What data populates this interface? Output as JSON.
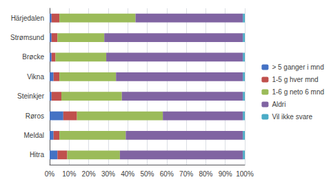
{
  "chart_data": {
    "type": "bar",
    "orientation": "horizontal",
    "stacked": true,
    "categories": [
      "Härjedalen",
      "Strømsund",
      "Brøcke",
      "Vikna",
      "Steinkjer",
      "Røros",
      "Meldal",
      "Hitra"
    ],
    "series": [
      {
        "name": "> 5 ganger i mnd",
        "color": "#4472C4",
        "values": [
          1,
          1,
          1,
          2,
          1,
          7,
          2,
          4
        ]
      },
      {
        "name": "1-5 g hver mnd",
        "color": "#C0504D",
        "values": [
          4,
          3,
          2,
          3,
          5,
          7,
          3,
          5
        ]
      },
      {
        "name": "1-6 g neto 6 mnd",
        "color": "#9BBB59",
        "values": [
          39,
          24,
          26,
          29,
          31,
          44,
          34,
          27
        ]
      },
      {
        "name": "Aldri",
        "color": "#8064A2",
        "values": [
          55,
          71,
          70,
          65,
          62,
          41,
          60,
          63
        ]
      },
      {
        "name": "Vil ikke svare",
        "color": "#4BACC6",
        "values": [
          1,
          1,
          1,
          1,
          1,
          1,
          1,
          1
        ]
      }
    ],
    "xlim": [
      0,
      100
    ],
    "xticks": [
      {
        "value": 0,
        "label": "0%"
      },
      {
        "value": 10,
        "label": "10%"
      },
      {
        "value": 20,
        "label": "20%"
      },
      {
        "value": 30,
        "label": "30%"
      },
      {
        "value": 40,
        "label": "40%"
      },
      {
        "value": 50,
        "label": "50%"
      },
      {
        "value": 60,
        "label": "60%"
      },
      {
        "value": 70,
        "label": "70%"
      },
      {
        "value": 80,
        "label": "80%"
      },
      {
        "value": 90,
        "label": "90%"
      },
      {
        "value": 100,
        "label": "100%"
      }
    ],
    "grid": true,
    "legend": "right"
  }
}
